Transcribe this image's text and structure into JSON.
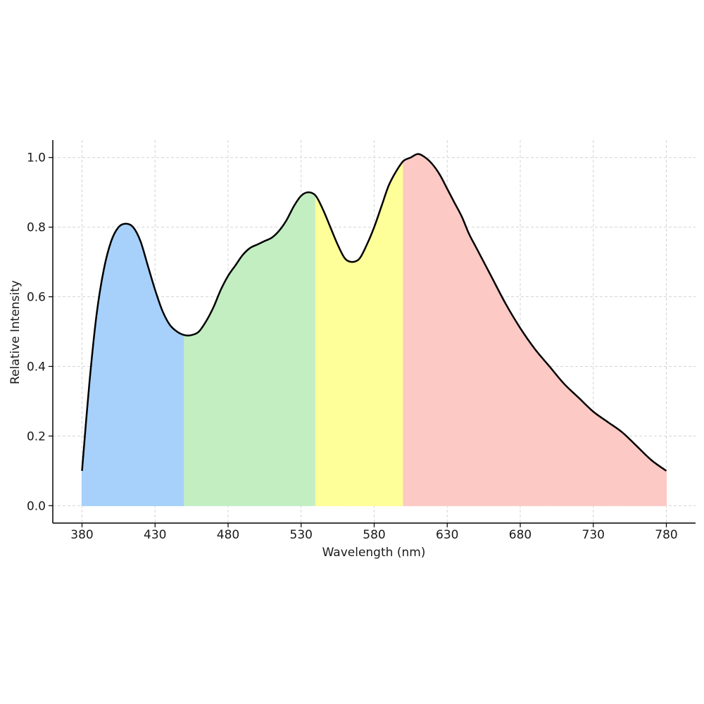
{
  "chart_data": {
    "type": "area",
    "title": "",
    "xlabel": "Wavelength (nm)",
    "ylabel": "Relative Intensity",
    "xlim": [
      360,
      800
    ],
    "ylim": [
      -0.05,
      1.05
    ],
    "x_ticks": [
      380,
      430,
      480,
      530,
      580,
      630,
      680,
      730,
      780
    ],
    "y_ticks": [
      0.0,
      0.2,
      0.4,
      0.6,
      0.8,
      1.0
    ],
    "y_tick_labels": [
      "0.0",
      "0.2",
      "0.4",
      "0.6",
      "0.8",
      "1.0"
    ],
    "grid": true,
    "series": [
      {
        "x": [
          380,
          385,
          390,
          395,
          400,
          405,
          410,
          415,
          420,
          425,
          430,
          435,
          440,
          445,
          450,
          455,
          460,
          465,
          470,
          475,
          480,
          485,
          490,
          495,
          500,
          505,
          510,
          515,
          520,
          525,
          530,
          535,
          540,
          545,
          550,
          555,
          560,
          565,
          570,
          575,
          580,
          585,
          590,
          595,
          600,
          605,
          610,
          615,
          620,
          625,
          630,
          635,
          640,
          645,
          650,
          660,
          670,
          680,
          690,
          700,
          710,
          720,
          730,
          740,
          750,
          760,
          770,
          780
        ],
        "y": [
          0.1,
          0.35,
          0.55,
          0.68,
          0.76,
          0.8,
          0.81,
          0.8,
          0.76,
          0.69,
          0.62,
          0.56,
          0.52,
          0.5,
          0.49,
          0.49,
          0.5,
          0.53,
          0.57,
          0.62,
          0.66,
          0.69,
          0.72,
          0.74,
          0.75,
          0.76,
          0.77,
          0.79,
          0.82,
          0.86,
          0.89,
          0.9,
          0.89,
          0.85,
          0.8,
          0.75,
          0.71,
          0.7,
          0.71,
          0.75,
          0.8,
          0.86,
          0.92,
          0.96,
          0.99,
          1.0,
          1.01,
          1.0,
          0.98,
          0.95,
          0.91,
          0.87,
          0.83,
          0.78,
          0.74,
          0.66,
          0.58,
          0.51,
          0.45,
          0.4,
          0.35,
          0.31,
          0.27,
          0.24,
          0.21,
          0.17,
          0.13,
          0.1
        ]
      }
    ],
    "bands": [
      {
        "start": 380,
        "end": 450,
        "color": "#a7d1fb"
      },
      {
        "start": 450,
        "end": 540,
        "color": "#c2eec2"
      },
      {
        "start": 540,
        "end": 600,
        "color": "#ffff99"
      },
      {
        "start": 600,
        "end": 780,
        "color": "#fcc9c5"
      }
    ],
    "line_color": "#000000"
  }
}
